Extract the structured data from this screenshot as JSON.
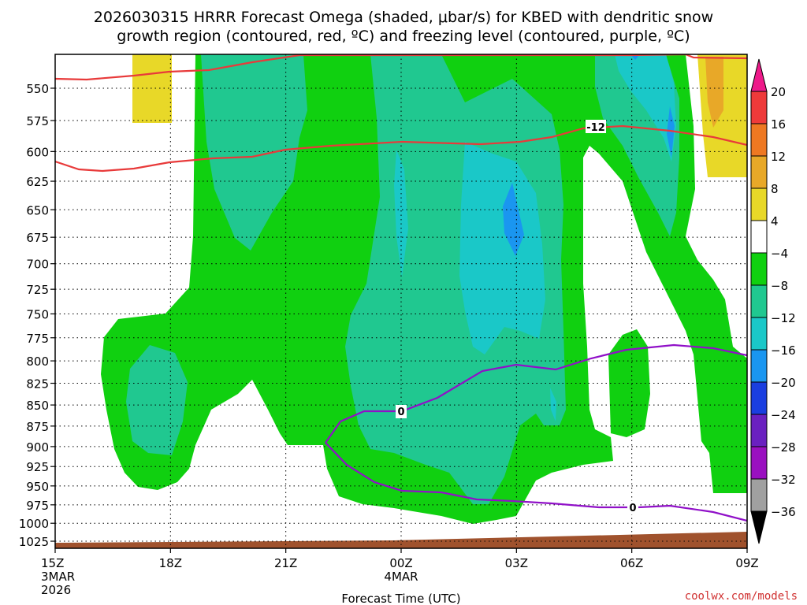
{
  "chart_data": {
    "type": "heatmap",
    "title_line1": "2026030315 HRRR Forecast Omega (shaded, μbar/s) for KBED with dendritic snow",
    "title_line2": "growth region (contoured, red, ºC) and freezing level (contoured, purple, ºC)",
    "xlabel": "Forecast Time (UTC)",
    "ylabel": "",
    "x_ticks": [
      {
        "hour": 0,
        "label": "15Z",
        "sub1": "3MAR",
        "sub2": "2026"
      },
      {
        "hour": 3,
        "label": "18Z",
        "sub1": "",
        "sub2": ""
      },
      {
        "hour": 6,
        "label": "21Z",
        "sub1": "",
        "sub2": ""
      },
      {
        "hour": 9,
        "label": "00Z",
        "sub1": "4MAR",
        "sub2": ""
      },
      {
        "hour": 12,
        "label": "03Z",
        "sub1": "",
        "sub2": ""
      },
      {
        "hour": 15,
        "label": "06Z",
        "sub1": "",
        "sub2": ""
      },
      {
        "hour": 18,
        "label": "09Z",
        "sub1": "",
        "sub2": ""
      }
    ],
    "x_range_hours": [
      0,
      18
    ],
    "y_ticks": [
      550,
      575,
      600,
      625,
      650,
      675,
      700,
      725,
      750,
      775,
      800,
      825,
      850,
      875,
      900,
      925,
      950,
      975,
      1000,
      1025
    ],
    "y_range_hpa": [
      525,
      1035
    ],
    "y_scale": "log",
    "grid": true,
    "colorbar": {
      "levels": [
        -36,
        -32,
        -28,
        -24,
        -20,
        -16,
        -12,
        -8,
        -4,
        4,
        8,
        12,
        16,
        20
      ],
      "labels": [
        "20",
        "16",
        "12",
        "8",
        "4",
        "−4",
        "−8",
        "−12",
        "−16",
        "−20",
        "−24",
        "−28",
        "−32",
        "−36"
      ],
      "colors": [
        "#000000",
        "#a0a0a0",
        "#9a10c0",
        "#6a20c0",
        "#1a3ee0",
        "#1a96f0",
        "#1ac8c8",
        "#20c890",
        "#10d010",
        "#ffffff",
        "#e8d828",
        "#e8a828",
        "#ee7822",
        "#ee3a3a",
        "#ee1a8a"
      ]
    },
    "dgz_contour": {
      "label": "-12",
      "color": "#e83a3a"
    },
    "freezing_contour": {
      "label": "0",
      "color": "#9010c8"
    }
  },
  "footer": {
    "credit": "coolwx.com/models"
  }
}
